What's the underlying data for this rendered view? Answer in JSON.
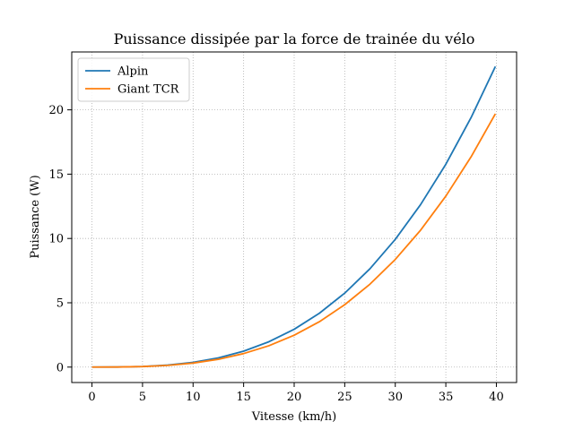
{
  "chart_data": {
    "type": "line",
    "title": "Puissance dissipée par la force de trainée du vélo",
    "xlabel": "Vitesse (km/h)",
    "ylabel": "Puissance (W)",
    "xlim": [
      -2,
      42
    ],
    "ylim": [
      -1.2,
      24.5
    ],
    "x_ticks": [
      0,
      5,
      10,
      15,
      20,
      25,
      30,
      35,
      40
    ],
    "y_ticks": [
      0,
      5,
      10,
      15,
      20
    ],
    "grid": true,
    "legend_position": "top-left",
    "series": [
      {
        "name": "Alpin",
        "color": "#1f77b4",
        "x": [
          0,
          2.5,
          5,
          7.5,
          10,
          12.5,
          15,
          17.5,
          20,
          22.5,
          25,
          27.5,
          30,
          32.5,
          35,
          37.5,
          39.9
        ],
        "y": [
          0,
          0.006,
          0.046,
          0.155,
          0.368,
          0.719,
          1.24,
          1.97,
          2.94,
          4.19,
          5.75,
          7.65,
          9.93,
          12.63,
          15.77,
          19.4,
          23.37
        ]
      },
      {
        "name": "Giant TCR",
        "color": "#ff7f0e",
        "x": [
          0,
          2.5,
          5,
          7.5,
          10,
          12.5,
          15,
          17.5,
          20,
          22.5,
          25,
          27.5,
          30,
          32.5,
          35,
          37.5,
          39.9
        ],
        "y": [
          0,
          0.005,
          0.039,
          0.131,
          0.31,
          0.606,
          1.05,
          1.66,
          2.48,
          3.53,
          4.85,
          6.45,
          8.37,
          10.64,
          13.29,
          16.35,
          19.69
        ]
      }
    ]
  }
}
